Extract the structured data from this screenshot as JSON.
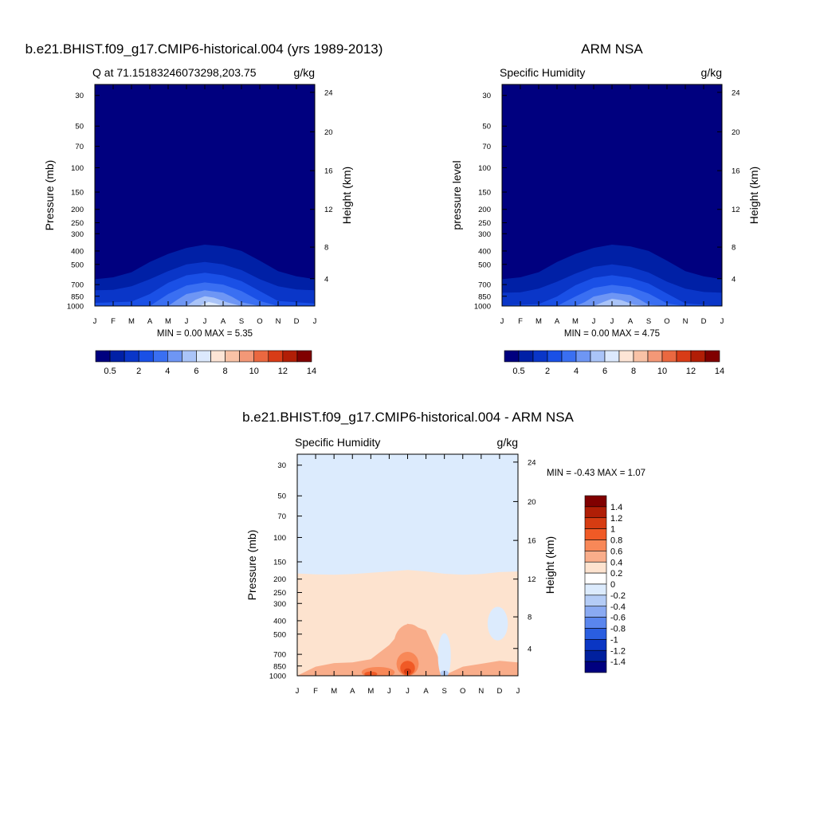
{
  "chart_data": [
    {
      "type": "heatmap",
      "panel": "model",
      "title": "b.e21.BHIST.f09_g17.CMIP6-historical.004 (yrs 1989-2013)",
      "left_string": "Q at 71.15183246073298,203.75",
      "right_string": "g/kg",
      "ylabel": "Pressure (mb)",
      "right_axis_label": "Height (km)",
      "x_ticks": [
        "J",
        "F",
        "M",
        "A",
        "M",
        "J",
        "J",
        "A",
        "S",
        "O",
        "N",
        "D",
        "J"
      ],
      "y_ticks": [
        "30",
        "50",
        "70",
        "100",
        "150",
        "200",
        "250",
        "300",
        "400",
        "500",
        "700",
        "850",
        "1000"
      ],
      "right_ticks": [
        "24",
        "20",
        "16",
        "12",
        "8",
        "4"
      ],
      "ylim": [
        1000,
        25
      ],
      "y_scale": "log",
      "min": 0.0,
      "max": 5.35,
      "min_max_text": "MIN =   0.00 MAX =   5.35",
      "levels": [
        0.5,
        1,
        2,
        3,
        4,
        5,
        6,
        7,
        8,
        9,
        10,
        11,
        12,
        13,
        14
      ],
      "colorbar_labels": [
        "0.5",
        "2",
        "4",
        "6",
        "8",
        "10",
        "12",
        "14"
      ]
    },
    {
      "type": "heatmap",
      "panel": "observations",
      "title": "ARM NSA",
      "left_string": "Specific Humidity",
      "right_string": "g/kg",
      "ylabel": "pressure level",
      "right_axis_label": "Height (km)",
      "x_ticks": [
        "J",
        "F",
        "M",
        "A",
        "M",
        "J",
        "J",
        "A",
        "S",
        "O",
        "N",
        "D",
        "J"
      ],
      "y_ticks": [
        "30",
        "50",
        "70",
        "100",
        "150",
        "200",
        "250",
        "300",
        "400",
        "500",
        "700",
        "850",
        "1000"
      ],
      "right_ticks": [
        "24",
        "20",
        "16",
        "12",
        "8",
        "4"
      ],
      "ylim": [
        1000,
        25
      ],
      "y_scale": "log",
      "min": 0.0,
      "max": 4.75,
      "min_max_text": "MIN =   0.00 MAX =   4.75",
      "levels": [
        0.5,
        1,
        2,
        3,
        4,
        5,
        6,
        7,
        8,
        9,
        10,
        11,
        12,
        13,
        14
      ],
      "colorbar_labels": [
        "0.5",
        "2",
        "4",
        "6",
        "8",
        "10",
        "12",
        "14"
      ]
    },
    {
      "type": "heatmap",
      "panel": "difference",
      "title": "b.e21.BHIST.f09_g17.CMIP6-historical.004 - ARM NSA",
      "left_string": "Specific Humidity",
      "right_string": "g/kg",
      "ylabel": "Pressure (mb)",
      "right_axis_label": "Height (km)",
      "x_ticks": [
        "J",
        "F",
        "M",
        "A",
        "M",
        "J",
        "J",
        "A",
        "S",
        "O",
        "N",
        "D",
        "J"
      ],
      "y_ticks": [
        "30",
        "50",
        "70",
        "100",
        "150",
        "200",
        "250",
        "300",
        "400",
        "500",
        "700",
        "850",
        "1000"
      ],
      "right_ticks": [
        "24",
        "20",
        "16",
        "12",
        "8",
        "4"
      ],
      "ylim": [
        1000,
        25
      ],
      "y_scale": "log",
      "min": -0.43,
      "max": 1.07,
      "min_max_text": "MIN =  -0.43 MAX =   1.07",
      "levels": [
        -1.4,
        -1.2,
        -1,
        -0.8,
        -0.6,
        -0.4,
        -0.2,
        0,
        0.2,
        0.4,
        0.6,
        0.8,
        1,
        1.2,
        1.4
      ],
      "colorbar_labels": [
        "1.4",
        "1.2",
        "1",
        "0.8",
        "0.6",
        "0.4",
        "0.2",
        "0",
        "-0.2",
        "-0.4",
        "-0.6",
        "-0.8",
        "-1",
        "-1.2",
        "-1.4"
      ]
    }
  ],
  "colors": {
    "seq_palette": [
      "#00007f",
      "#0020a6",
      "#0a36c8",
      "#1a50e6",
      "#3a6ff2",
      "#6e96f4",
      "#aac4f8",
      "#dce9fd",
      "#fde5d6",
      "#f9c2a6",
      "#f39877",
      "#ea6840",
      "#d83c17",
      "#b11e06",
      "#800000"
    ],
    "div_palette_top_to_bottom": [
      "#800000",
      "#b01e06",
      "#d63c12",
      "#f05a26",
      "#f88858",
      "#f9ad8a",
      "#fde3cf",
      "#ffffff",
      "#dcebfd",
      "#b4ccf6",
      "#8aaaf2",
      "#5a86ee",
      "#2a5ee0",
      "#0a36c4",
      "#00209e",
      "#00007f"
    ]
  }
}
